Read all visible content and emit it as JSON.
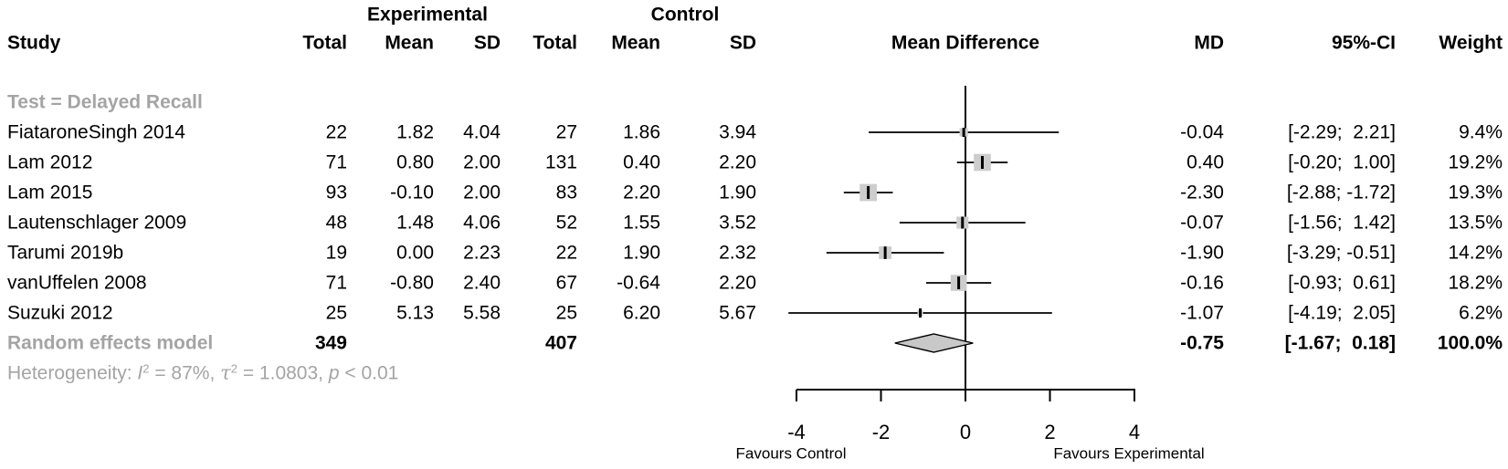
{
  "header": {
    "group_experimental": "Experimental",
    "group_control": "Control",
    "col_study": "Study",
    "col_total": "Total",
    "col_mean": "Mean",
    "col_sd": "SD",
    "col_effect": "Mean Difference",
    "col_md": "MD",
    "col_ci": "95%-CI",
    "col_weight": "Weight"
  },
  "subgroup_label": "Test = Delayed Recall",
  "heterogeneity": {
    "prefix": "Heterogeneity: ",
    "i2_label": "I",
    "i2_sup": "2",
    "i2_value": " = 87%, ",
    "tau_label": "τ",
    "tau_sup": "2",
    "tau_value": " = 1.0803, ",
    "p_label": "p",
    "p_value": " < 0.01"
  },
  "chart_data": {
    "type": "forest",
    "effect_measure": "Mean Difference",
    "x_axis": {
      "ticks": [
        -4,
        -2,
        0,
        2,
        4
      ],
      "range": [
        -4.3,
        4.3
      ],
      "zero_line": 0,
      "label_left": "Favours Control",
      "label_right": "Favours Experimental"
    },
    "studies": [
      {
        "study": "FiataroneSingh 2014",
        "exp_total": "22",
        "exp_mean": "1.82",
        "exp_sd": "4.04",
        "ctrl_total": "27",
        "ctrl_mean": "1.86",
        "ctrl_sd": "3.94",
        "md": -0.04,
        "ci_lo": -2.29,
        "ci_hi": 2.21,
        "md_text": "-0.04",
        "ci_text": "[-2.29;  2.21]",
        "weight_pct": 9.4,
        "weight_text": "9.4%"
      },
      {
        "study": "Lam 2012",
        "exp_total": "71",
        "exp_mean": "0.80",
        "exp_sd": "2.00",
        "ctrl_total": "131",
        "ctrl_mean": "0.40",
        "ctrl_sd": "2.20",
        "md": 0.4,
        "ci_lo": -0.2,
        "ci_hi": 1.0,
        "md_text": "0.40",
        "ci_text": "[-0.20;  1.00]",
        "weight_pct": 19.2,
        "weight_text": "19.2%"
      },
      {
        "study": "Lam 2015",
        "exp_total": "93",
        "exp_mean": "-0.10",
        "exp_sd": "2.00",
        "ctrl_total": "83",
        "ctrl_mean": "2.20",
        "ctrl_sd": "1.90",
        "md": -2.3,
        "ci_lo": -2.88,
        "ci_hi": -1.72,
        "md_text": "-2.30",
        "ci_text": "[-2.88; -1.72]",
        "weight_pct": 19.3,
        "weight_text": "19.3%"
      },
      {
        "study": "Lautenschlager 2009",
        "exp_total": "48",
        "exp_mean": "1.48",
        "exp_sd": "4.06",
        "ctrl_total": "52",
        "ctrl_mean": "1.55",
        "ctrl_sd": "3.52",
        "md": -0.07,
        "ci_lo": -1.56,
        "ci_hi": 1.42,
        "md_text": "-0.07",
        "ci_text": "[-1.56;  1.42]",
        "weight_pct": 13.5,
        "weight_text": "13.5%"
      },
      {
        "study": "Tarumi 2019b",
        "exp_total": "19",
        "exp_mean": "0.00",
        "exp_sd": "2.23",
        "ctrl_total": "22",
        "ctrl_mean": "1.90",
        "ctrl_sd": "2.32",
        "md": -1.9,
        "ci_lo": -3.29,
        "ci_hi": -0.51,
        "md_text": "-1.90",
        "ci_text": "[-3.29; -0.51]",
        "weight_pct": 14.2,
        "weight_text": "14.2%"
      },
      {
        "study": "vanUffelen 2008",
        "exp_total": "71",
        "exp_mean": "-0.80",
        "exp_sd": "2.40",
        "ctrl_total": "67",
        "ctrl_mean": "-0.64",
        "ctrl_sd": "2.20",
        "md": -0.16,
        "ci_lo": -0.93,
        "ci_hi": 0.61,
        "md_text": "-0.16",
        "ci_text": "[-0.93;  0.61]",
        "weight_pct": 18.2,
        "weight_text": "18.2%"
      },
      {
        "study": "Suzuki 2012",
        "exp_total": "25",
        "exp_mean": "5.13",
        "exp_sd": "5.58",
        "ctrl_total": "25",
        "ctrl_mean": "6.20",
        "ctrl_sd": "5.67",
        "md": -1.07,
        "ci_lo": -4.19,
        "ci_hi": 2.05,
        "md_text": "-1.07",
        "ci_text": "[-4.19;  2.05]",
        "weight_pct": 6.2,
        "weight_text": "6.2%"
      }
    ],
    "pooled": {
      "label": "Random effects model",
      "exp_total": "349",
      "ctrl_total": "407",
      "md": -0.75,
      "ci_lo": -1.67,
      "ci_hi": 0.18,
      "md_text": "-0.75",
      "ci_text": "[-1.67;  0.18]",
      "weight_text": "100.0%"
    }
  },
  "colors": {
    "square_fill": "#cdcdcd",
    "diamond_fill": "#c8c8c8",
    "line": "#000000",
    "gray_text": "#a4a4a4"
  }
}
